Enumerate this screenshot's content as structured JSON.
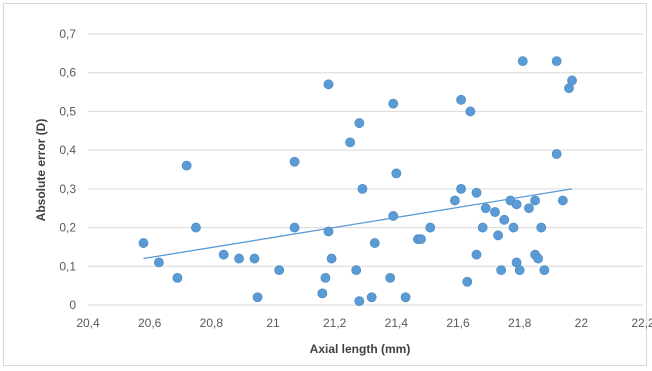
{
  "chart_data": {
    "type": "scatter",
    "title": "",
    "xlabel": "Axial length  (mm)",
    "ylabel": "Absolute error (D)",
    "xlim": [
      20.4,
      22.2
    ],
    "ylim": [
      0,
      0.7
    ],
    "x_ticks": [
      20.4,
      20.6,
      20.8,
      21,
      21.2,
      21.4,
      21.6,
      21.8,
      22,
      22.2
    ],
    "x_tick_labels": [
      "20,4",
      "20,6",
      "20,8",
      "21",
      "21,2",
      "21,4",
      "21,6",
      "21,8",
      "22",
      "22,2"
    ],
    "y_ticks": [
      0,
      0.1,
      0.2,
      0.3,
      0.4,
      0.5,
      0.6,
      0.7
    ],
    "y_tick_labels": [
      "0",
      "0,1",
      "0,2",
      "0,3",
      "0,4",
      "0,5",
      "0,6",
      "0,7"
    ],
    "grid": "horizontal",
    "marker_color": "#5b9bd5",
    "trendline": {
      "x": [
        20.58,
        21.97
      ],
      "y": [
        0.12,
        0.3
      ],
      "color": "#5b9bd5"
    },
    "points": [
      [
        20.58,
        0.16
      ],
      [
        20.63,
        0.11
      ],
      [
        20.69,
        0.07
      ],
      [
        20.72,
        0.36
      ],
      [
        20.75,
        0.2
      ],
      [
        20.84,
        0.13
      ],
      [
        20.89,
        0.12
      ],
      [
        20.94,
        0.12
      ],
      [
        20.95,
        0.02
      ],
      [
        21.02,
        0.09
      ],
      [
        21.07,
        0.37
      ],
      [
        21.07,
        0.2
      ],
      [
        21.16,
        0.03
      ],
      [
        21.17,
        0.07
      ],
      [
        21.18,
        0.57
      ],
      [
        21.18,
        0.19
      ],
      [
        21.19,
        0.12
      ],
      [
        21.25,
        0.42
      ],
      [
        21.27,
        0.09
      ],
      [
        21.28,
        0.47
      ],
      [
        21.28,
        0.01
      ],
      [
        21.29,
        0.3
      ],
      [
        21.32,
        0.02
      ],
      [
        21.33,
        0.16
      ],
      [
        21.38,
        0.07
      ],
      [
        21.39,
        0.52
      ],
      [
        21.39,
        0.23
      ],
      [
        21.4,
        0.34
      ],
      [
        21.43,
        0.02
      ],
      [
        21.47,
        0.17
      ],
      [
        21.48,
        0.17
      ],
      [
        21.51,
        0.2
      ],
      [
        21.59,
        0.27
      ],
      [
        21.61,
        0.53
      ],
      [
        21.61,
        0.3
      ],
      [
        21.63,
        0.06
      ],
      [
        21.64,
        0.5
      ],
      [
        21.66,
        0.29
      ],
      [
        21.66,
        0.13
      ],
      [
        21.68,
        0.2
      ],
      [
        21.69,
        0.25
      ],
      [
        21.72,
        0.24
      ],
      [
        21.73,
        0.18
      ],
      [
        21.74,
        0.09
      ],
      [
        21.75,
        0.22
      ],
      [
        21.77,
        0.27
      ],
      [
        21.78,
        0.2
      ],
      [
        21.79,
        0.11
      ],
      [
        21.79,
        0.26
      ],
      [
        21.8,
        0.09
      ],
      [
        21.81,
        0.63
      ],
      [
        21.83,
        0.25
      ],
      [
        21.85,
        0.27
      ],
      [
        21.85,
        0.13
      ],
      [
        21.86,
        0.12
      ],
      [
        21.87,
        0.2
      ],
      [
        21.88,
        0.09
      ],
      [
        21.92,
        0.63
      ],
      [
        21.92,
        0.39
      ],
      [
        21.94,
        0.27
      ],
      [
        21.96,
        0.56
      ],
      [
        21.97,
        0.58
      ]
    ]
  }
}
